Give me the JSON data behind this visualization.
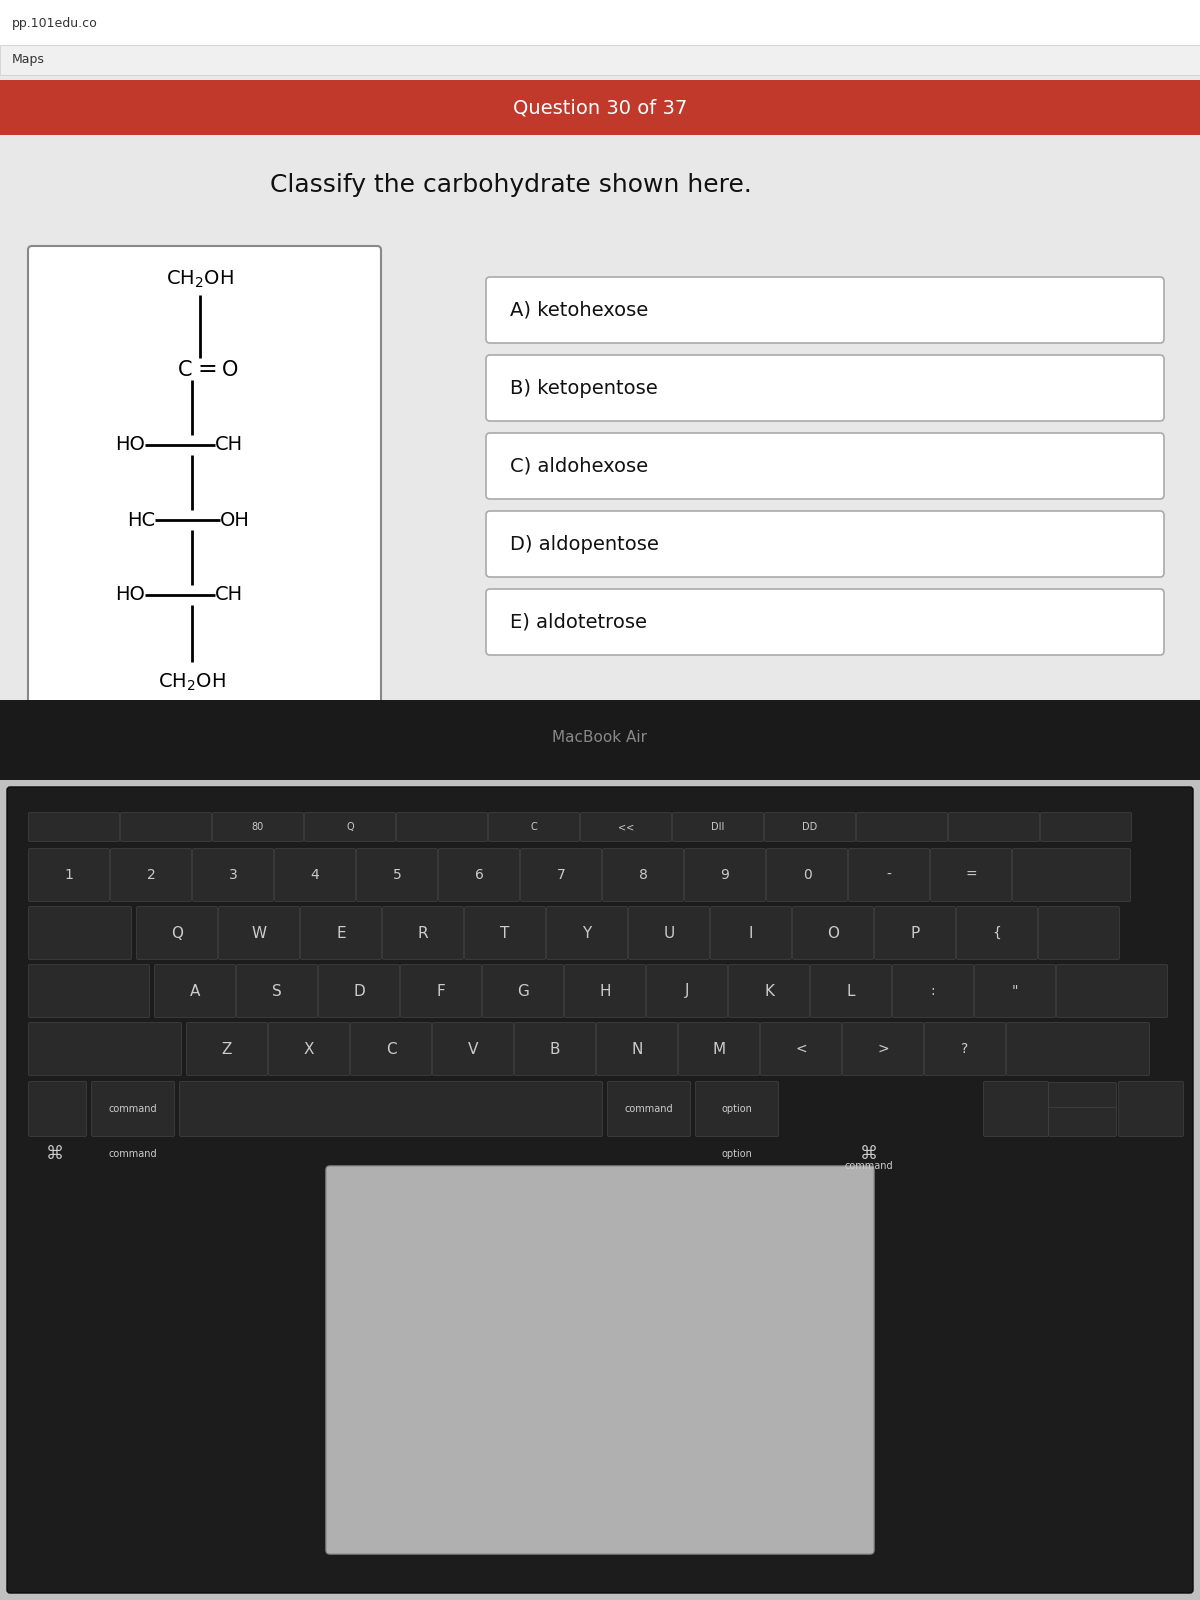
{
  "url_text": "pp.101edu.co",
  "maps_text": "Maps",
  "question_bar_color": "#c0392b",
  "question_text": "Question 30 of 37",
  "question_text_color": "white",
  "prompt_text": "Classify the carbohydrate shown here.",
  "screen_bg": "#d8d8d8",
  "content_bg": "#e8e8e8",
  "answer_box_bg": "white",
  "answer_box_border": "#aaaaaa",
  "answers": [
    "A) ketohexose",
    "B) ketopentose",
    "C) aldohexose",
    "D) aldopentose",
    "E) aldotetrose"
  ],
  "structure_box_bg": "white",
  "structure_box_border": "#888888",
  "keyboard_dark": "#222222",
  "keyboard_body": "#b8b8b8",
  "macbook_text": "MacBook Air",
  "macbook_text_color": "#888888"
}
